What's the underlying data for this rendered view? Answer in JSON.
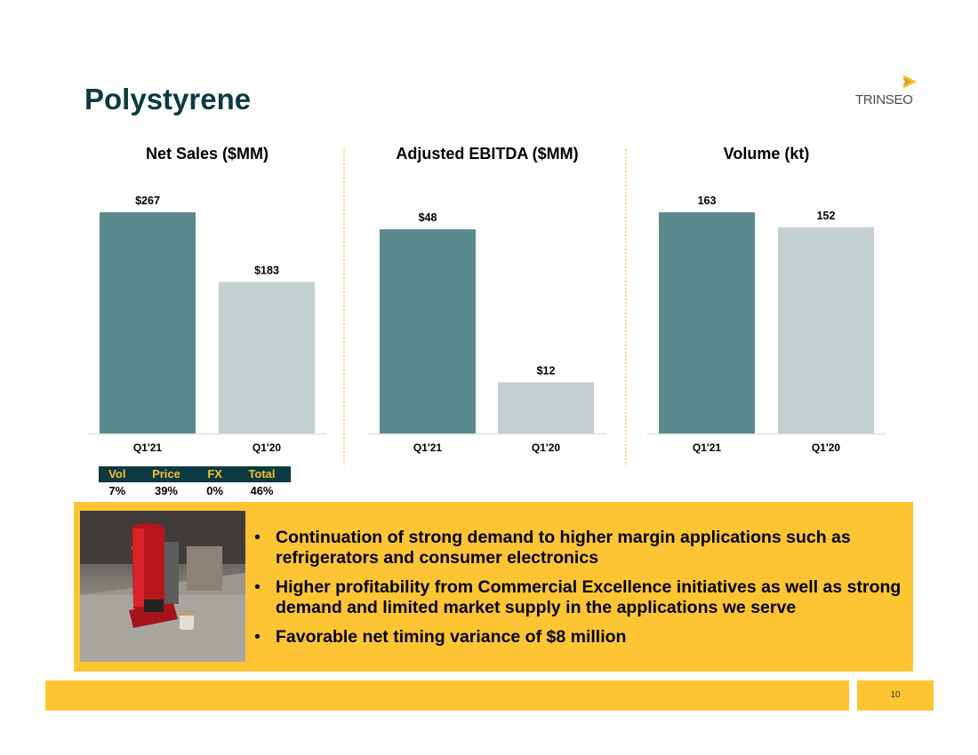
{
  "slide": {
    "title": "Polystyrene",
    "page_number": "10"
  },
  "logo": {
    "text": "TRINSEO",
    "mark_color": "#f3c12c"
  },
  "colors": {
    "bar_current": "#5a8a8e",
    "bar_prior": "#c3cfd0",
    "title": "#0d3a40",
    "accent_yellow": "#fdc534",
    "divider": "#f3c12c"
  },
  "chart_data": [
    {
      "type": "bar",
      "title": "Net Sales ($MM)",
      "categories": [
        "Q1'21",
        "Q1'20"
      ],
      "values": [
        267,
        183
      ],
      "value_labels": [
        "$267",
        "$183"
      ],
      "ylim": [
        0,
        267
      ],
      "grid": false
    },
    {
      "type": "bar",
      "title": "Adjusted EBITDA ($MM)",
      "categories": [
        "Q1'21",
        "Q1'20"
      ],
      "values": [
        48,
        12
      ],
      "value_labels": [
        "$48",
        "$12"
      ],
      "ylim": [
        0,
        52
      ],
      "grid": false
    },
    {
      "type": "bar",
      "title": "Volume (kt)",
      "categories": [
        "Q1'21",
        "Q1'20"
      ],
      "values": [
        163,
        152
      ],
      "value_labels": [
        "163",
        "152"
      ],
      "ylim": [
        0,
        163
      ],
      "grid": false
    }
  ],
  "bridge_table": {
    "headers": [
      "Vol",
      "Price",
      "FX",
      "Total"
    ],
    "values": [
      "7%",
      "39%",
      "0%",
      "46%"
    ]
  },
  "callout": {
    "image": "coffee-maker-photo",
    "bullets": [
      "Continuation of strong demand to higher margin applications such as refrigerators and consumer electronics",
      "Higher profitability from Commercial Excellence initiatives as well as strong demand and limited market supply in the applications we serve",
      "Favorable net timing variance of $8 million"
    ]
  }
}
